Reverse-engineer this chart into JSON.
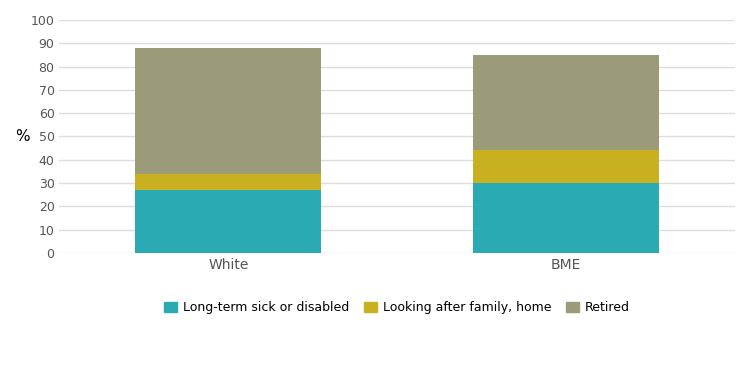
{
  "categories": [
    "White",
    "BME"
  ],
  "series": {
    "Long-term sick or disabled": [
      27,
      30
    ],
    "Looking after family, home": [
      7,
      14
    ],
    "Retired": [
      54,
      41
    ]
  },
  "colors": {
    "Long-term sick or disabled": "#2aabb3",
    "Looking after family, home": "#c8b020",
    "Retired": "#9b9b7a"
  },
  "ylabel": "%",
  "ylim": [
    0,
    100
  ],
  "yticks": [
    0,
    10,
    20,
    30,
    40,
    50,
    60,
    70,
    80,
    90,
    100
  ],
  "background_color": "#ffffff",
  "bar_width": 0.55,
  "xlim": [
    -0.5,
    1.5
  ],
  "legend_order": [
    "Long-term sick or disabled",
    "Looking after family, home",
    "Retired"
  ]
}
